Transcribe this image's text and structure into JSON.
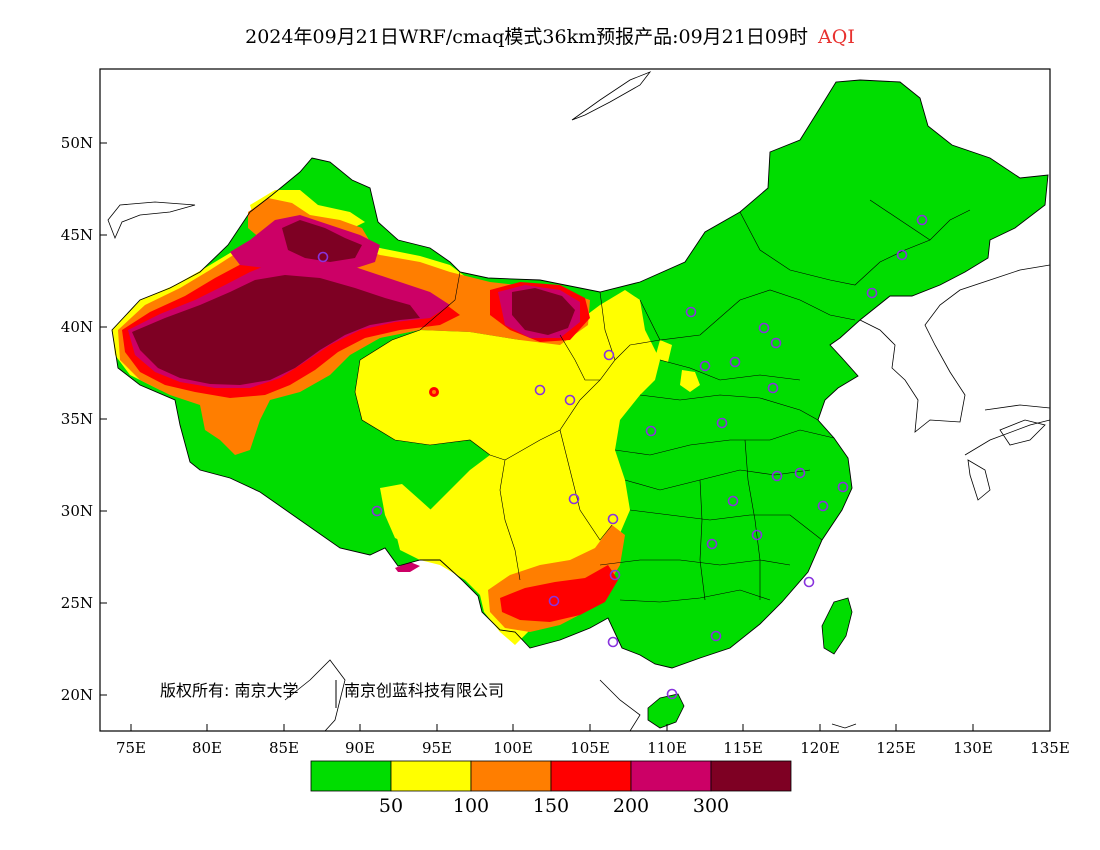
{
  "title": {
    "main": "2024年09月21日WRF/cmaq模式36km预报产品:09月21日09时",
    "variable": "AQI",
    "variable_color": "#e8312f"
  },
  "map": {
    "lon_range": [
      73,
      135
    ],
    "lat_range": [
      18,
      54
    ],
    "x_ticks": [
      "75E",
      "80E",
      "85E",
      "90E",
      "95E",
      "100E",
      "105E",
      "110E",
      "115E",
      "120E",
      "125E",
      "130E",
      "135E"
    ],
    "y_ticks": [
      "50N",
      "45N",
      "40N",
      "35N",
      "30N",
      "25N",
      "20N"
    ],
    "credit_left": "版权所有: 南京大学",
    "credit_right": "南京创蓝科技有限公司"
  },
  "legend": {
    "colors": [
      "#00dd00",
      "#ffff00",
      "#ff7e00",
      "#ff0000",
      "#cc0066",
      "#7e0023"
    ],
    "labels": [
      "50",
      "100",
      "150",
      "200",
      "300"
    ]
  }
}
